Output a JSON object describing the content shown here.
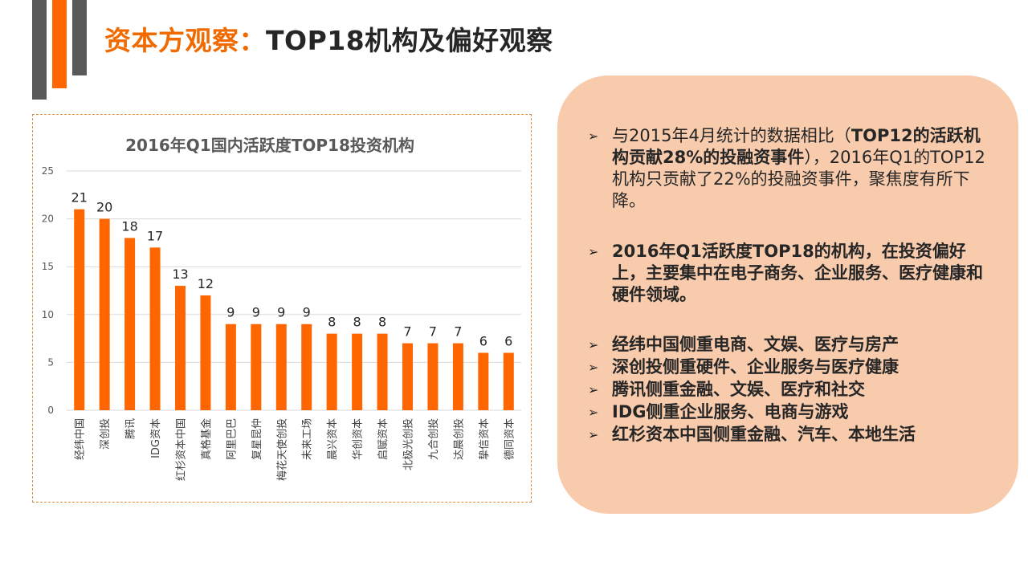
{
  "header": {
    "title_highlight": "资本方观察：",
    "title_rest": "TOP18机构及偏好观察"
  },
  "colors": {
    "accent": "#ff6600",
    "dark": "#595959",
    "panel": "#f8cbad"
  },
  "chart_data": {
    "type": "bar",
    "title": "2016年Q1国内活跃度TOP18投资机构",
    "categories": [
      "经纬中国",
      "深创投",
      "腾讯",
      "IDG资本",
      "红杉资本中国",
      "真格基金",
      "阿里巴巴",
      "复星昆仲",
      "梅花天使创投",
      "未来工场",
      "晨兴资本",
      "华创资本",
      "启赋资本",
      "北极光创投",
      "九合创投",
      "达晨创投",
      "挚信资本",
      "德同资本"
    ],
    "values": [
      21,
      20,
      18,
      17,
      13,
      12,
      9,
      9,
      9,
      9,
      8,
      8,
      8,
      7,
      7,
      7,
      6,
      6
    ],
    "ylim": [
      0,
      25
    ],
    "yticks": [
      0,
      5,
      10,
      15,
      20,
      25
    ],
    "grid": true,
    "bar_color": "#ff6600"
  },
  "panel": {
    "bullet_icon": "arrow-bullet-icon",
    "p1_a": "与2015年4月统计的数据相比（",
    "p1_b": "TOP12的活跃机构贡献28%的投融资事件",
    "p1_c": "），2016年Q1的TOP12机构只贡献了22%的投融资事件，聚焦度有所下降。",
    "p2": "2016年Q1活跃度TOP18的机构，在投资偏好上，主要集中在电子商务、企业服务、医疗健康和硬件领域。",
    "items": [
      "经纬中国侧重电商、文娱、医疗与房产",
      "深创投侧重硬件、企业服务与医疗健康",
      "腾讯侧重金融、文娱、医疗和社交",
      "IDG侧重企业服务、电商与游戏",
      "红杉资本中国侧重金融、汽车、本地生活"
    ]
  }
}
